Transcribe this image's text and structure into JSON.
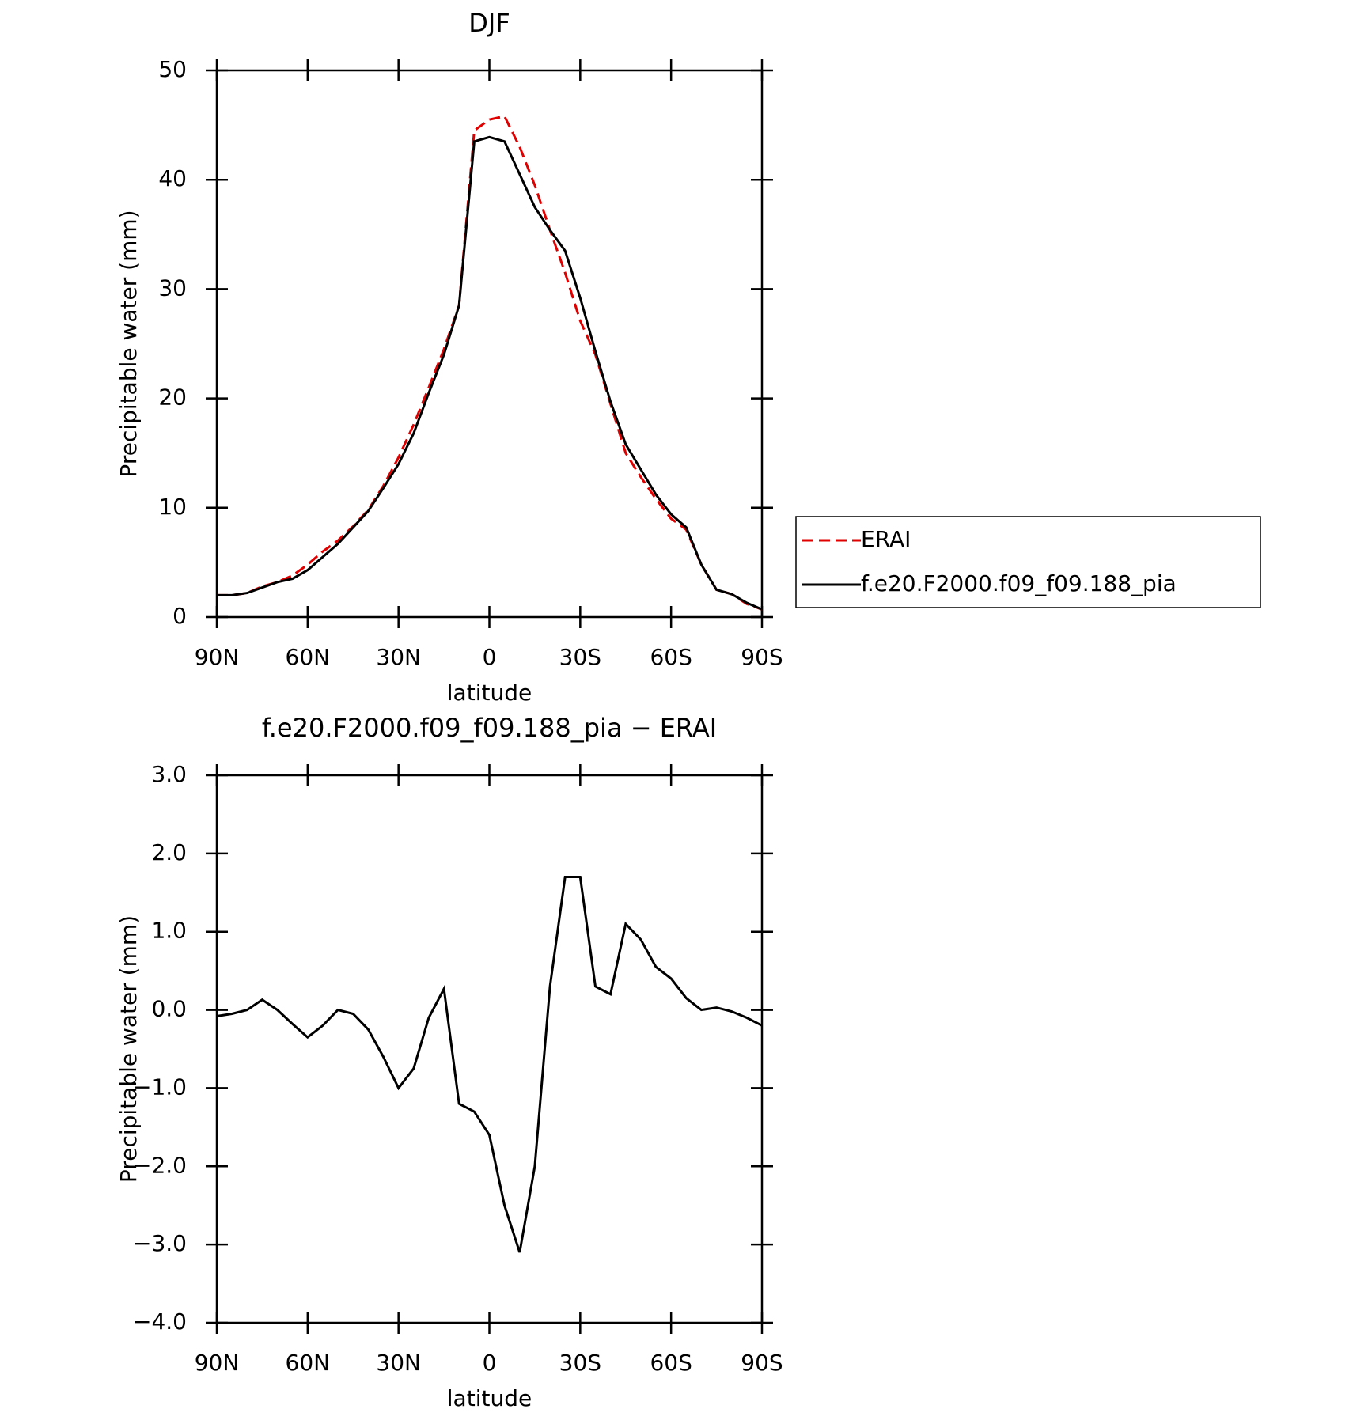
{
  "chart_data": [
    {
      "type": "line",
      "title": "DJF",
      "xlabel": "latitude",
      "ylabel": "Precipitable water (mm)",
      "x": [
        90,
        85,
        80,
        75,
        70,
        65,
        60,
        55,
        50,
        45,
        40,
        35,
        30,
        25,
        20,
        15,
        10,
        5,
        0,
        -5,
        -10,
        -15,
        -20,
        -25,
        -30,
        -35,
        -40,
        -45,
        -50,
        -55,
        -60,
        -65,
        -70,
        -75,
        -80,
        -85,
        -90
      ],
      "series": [
        {
          "name": "ERAI",
          "color": "#e00000",
          "dashed": true,
          "values": [
            2.0,
            2.0,
            2.2,
            2.8,
            3.2,
            3.8,
            4.8,
            6.0,
            7.0,
            8.3,
            9.8,
            12.0,
            14.6,
            17.6,
            21.0,
            24.5,
            28.5,
            44.5,
            45.5,
            45.8,
            43.0,
            39.5,
            35.4,
            31.5,
            27.1,
            24.0,
            19.5,
            15.0,
            12.8,
            10.8,
            9.0,
            8.0,
            4.8,
            2.5,
            2.1,
            1.2,
            0.7
          ]
        },
        {
          "name": "f.e20.F2000.f09_f09.188_pia",
          "color": "#000000",
          "dashed": false,
          "values": [
            2.0,
            2.0,
            2.2,
            2.7,
            3.2,
            3.5,
            4.3,
            5.5,
            6.7,
            8.2,
            9.7,
            11.8,
            14.0,
            16.8,
            20.5,
            24.0,
            28.5,
            43.5,
            43.9,
            43.5,
            40.5,
            37.5,
            35.4,
            33.5,
            29.2,
            24.3,
            19.7,
            15.8,
            13.5,
            11.2,
            9.4,
            8.2,
            4.8,
            2.5,
            2.1,
            1.3,
            0.7
          ]
        }
      ],
      "xlim": [
        90,
        -90
      ],
      "ylim": [
        0,
        50
      ],
      "yticks": [
        0,
        10,
        20,
        30,
        40,
        50
      ],
      "xticks": [
        {
          "value": 90,
          "label": "90N"
        },
        {
          "value": 60,
          "label": "60N"
        },
        {
          "value": 30,
          "label": "30N"
        },
        {
          "value": 0,
          "label": "0"
        },
        {
          "value": -30,
          "label": "30S"
        },
        {
          "value": -60,
          "label": "60S"
        },
        {
          "value": -90,
          "label": "90S"
        }
      ],
      "legend": "right"
    },
    {
      "type": "line",
      "title": "f.e20.F2000.f09_f09.188_pia − ERAI",
      "xlabel": "latitude",
      "ylabel": "Precipitable water (mm)",
      "x": [
        90,
        85,
        80,
        75,
        70,
        65,
        60,
        55,
        50,
        45,
        40,
        35,
        30,
        25,
        20,
        15,
        10,
        5,
        0,
        -5,
        -10,
        -15,
        -20,
        -25,
        -30,
        -35,
        -40,
        -45,
        -50,
        -55,
        -60,
        -65,
        -70,
        -75,
        -80,
        -85,
        -90
      ],
      "series": [
        {
          "color": "#000000",
          "dashed": false,
          "values": [
            -0.08,
            -0.05,
            0.0,
            0.13,
            0.0,
            -0.18,
            -0.35,
            -0.2,
            0.0,
            -0.05,
            -0.25,
            -0.6,
            -1.0,
            -0.75,
            -0.1,
            0.27,
            -1.2,
            -1.3,
            -1.6,
            -2.5,
            -3.1,
            -2.0,
            0.3,
            1.7,
            1.7,
            0.3,
            0.2,
            1.1,
            0.9,
            0.55,
            0.4,
            0.15,
            0.0,
            0.03,
            -0.02,
            -0.1,
            -0.2
          ]
        }
      ],
      "xlim": [
        90,
        -90
      ],
      "ylim": [
        -4.0,
        3.0
      ],
      "yticks": [
        {
          "value": -4,
          "label": "−4.0"
        },
        {
          "value": -3,
          "label": "−3.0"
        },
        {
          "value": -2,
          "label": "−2.0"
        },
        {
          "value": -1,
          "label": "−1.0"
        },
        {
          "value": 0,
          "label": "0.0"
        },
        {
          "value": 1,
          "label": "1.0"
        },
        {
          "value": 2,
          "label": "2.0"
        },
        {
          "value": 3,
          "label": "3.0"
        }
      ],
      "xticks": [
        {
          "value": 90,
          "label": "90N"
        },
        {
          "value": 60,
          "label": "60N"
        },
        {
          "value": 30,
          "label": "30N"
        },
        {
          "value": 0,
          "label": "0"
        },
        {
          "value": -30,
          "label": "30S"
        },
        {
          "value": -60,
          "label": "60S"
        },
        {
          "value": -90,
          "label": "90S"
        }
      ]
    }
  ]
}
